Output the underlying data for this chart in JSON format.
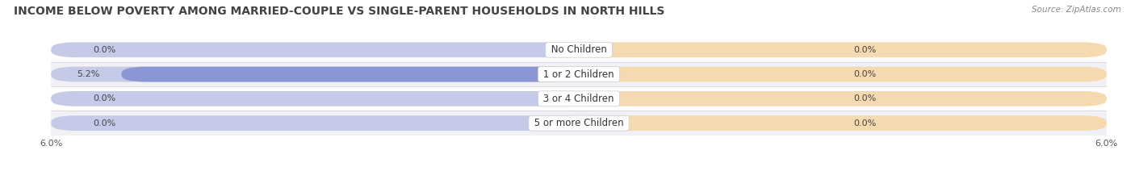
{
  "title": "INCOME BELOW POVERTY AMONG MARRIED-COUPLE VS SINGLE-PARENT HOUSEHOLDS IN NORTH HILLS",
  "source": "Source: ZipAtlas.com",
  "categories": [
    "No Children",
    "1 or 2 Children",
    "3 or 4 Children",
    "5 or more Children"
  ],
  "married_couples": [
    0.0,
    5.2,
    0.0,
    0.0
  ],
  "single_parents": [
    0.0,
    0.0,
    0.0,
    0.0
  ],
  "xlim": 6.0,
  "married_color": "#8b96d4",
  "married_bg_color": "#c5cae8",
  "single_color": "#f5c98a",
  "single_bg_color": "#f5d9b0",
  "bar_height": 0.62,
  "row_colors": [
    "#ffffff",
    "#f0f0f5"
  ],
  "background_color": "#f5f5fa",
  "title_fontsize": 10,
  "axis_fontsize": 8,
  "label_fontsize": 8,
  "cat_fontsize": 8.5,
  "source_fontsize": 7.5,
  "min_bar_width": 0.35
}
